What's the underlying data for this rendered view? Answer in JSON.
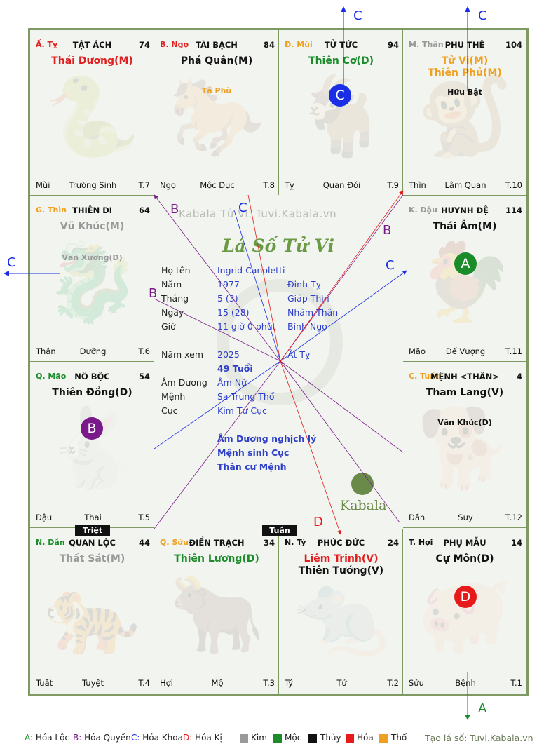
{
  "palaces": [
    {
      "corner": "Ấ. Tỵ",
      "corner_color": "#e02020",
      "name": "TẬT ÁCH",
      "num": "74",
      "main": [
        {
          "t": "Thái Dương(M)",
          "c": "#e02020"
        }
      ],
      "minor": [],
      "bottom": {
        "left": "Mùi",
        "mid": "Trường Sinh",
        "right": "T.7"
      },
      "animal": "🐍"
    },
    {
      "corner": "B. Ngọ",
      "corner_color": "#e02020",
      "name": "TÀI BẠCH",
      "num": "84",
      "main": [
        {
          "t": "Phá Quân(M)",
          "c": "#111111"
        }
      ],
      "minor": [
        {
          "t": "Tả Phù",
          "c": "#f0a020"
        }
      ],
      "bottom": {
        "left": "Ngọ",
        "mid": "Mộc Dục",
        "right": "T.8"
      },
      "animal": "🐎"
    },
    {
      "corner": "Đ. Mùi",
      "corner_color": "#f0a020",
      "name": "TỬ TỨC",
      "num": "94",
      "main": [
        {
          "t": "Thiên Cơ(D)",
          "c": "#1a8c2a"
        }
      ],
      "minor": [],
      "bottom": {
        "left": "Tỵ",
        "mid": "Quan Đới",
        "right": "T.9"
      },
      "animal": "🐐"
    },
    {
      "corner": "M. Thân",
      "corner_color": "#999999",
      "name": "PHU THÊ",
      "num": "104",
      "main": [
        {
          "t": "Tử Vi(M)",
          "c": "#f0a020"
        },
        {
          "t": "Thiên Phủ(M)",
          "c": "#f0a020"
        }
      ],
      "minor": [
        {
          "t": "Hữu Bật",
          "c": "#111111"
        }
      ],
      "bottom": {
        "left": "Thìn",
        "mid": "Lâm Quan",
        "right": "T.10"
      },
      "animal": "🐒"
    },
    {
      "corner": "G. Thìn",
      "corner_color": "#f0a020",
      "name": "THIÊN DI",
      "num": "64",
      "main": [
        {
          "t": "Vũ Khúc(M)",
          "c": "#999999"
        }
      ],
      "minor": [
        {
          "t": "Văn Xương(D)",
          "c": "#999999"
        }
      ],
      "bottom": {
        "left": "Thân",
        "mid": "Dưỡng",
        "right": "T.6"
      },
      "animal": "🐉"
    },
    {
      "corner": "K. Dậu",
      "corner_color": "#999999",
      "name": "HUYNH ĐỆ",
      "num": "114",
      "main": [
        {
          "t": "Thái Âm(M)",
          "c": "#111111"
        }
      ],
      "minor": [],
      "bottom": {
        "left": "Mão",
        "mid": "Đế Vượng",
        "right": "T.11"
      },
      "animal": "🐓"
    },
    {
      "corner": "Q. Mão",
      "corner_color": "#1a8c2a",
      "name": "NÔ BỘC",
      "num": "54",
      "main": [
        {
          "t": "Thiên Đồng(D)",
          "c": "#111111"
        }
      ],
      "minor": [],
      "bottom": {
        "left": "Dậu",
        "mid": "Thai",
        "right": "T.5"
      },
      "animal": "🐇"
    },
    {
      "corner": "C. Tuất",
      "corner_color": "#f0a020",
      "name": "MỆNH <THÂN>",
      "num": "4",
      "main": [
        {
          "t": "Tham Lang(V)",
          "c": "#111111"
        }
      ],
      "minor": [
        {
          "t": "Văn Khúc(D)",
          "c": "#111111"
        }
      ],
      "bottom": {
        "left": "Dần",
        "mid": "Suy",
        "right": "T.12"
      },
      "animal": "🐕"
    },
    {
      "corner": "N. Dần",
      "corner_color": "#1a8c2a",
      "name": "QUAN LỘC",
      "num": "44",
      "main": [
        {
          "t": "Thất Sát(M)",
          "c": "#999999"
        }
      ],
      "minor": [],
      "bottom": {
        "left": "Tuất",
        "mid": "Tuyệt",
        "right": "T.4"
      },
      "animal": "🐅"
    },
    {
      "corner": "Q. Sửu",
      "corner_color": "#f0a020",
      "name": "ĐIỀN TRẠCH",
      "num": "34",
      "main": [
        {
          "t": "Thiên Lương(D)",
          "c": "#1a8c2a"
        }
      ],
      "minor": [],
      "bottom": {
        "left": "Hợi",
        "mid": "Mộ",
        "right": "T.3"
      },
      "animal": "🐂"
    },
    {
      "corner": "N. Tý",
      "corner_color": "#111111",
      "name": "PHÚC ĐỨC",
      "num": "24",
      "main": [
        {
          "t": "Liêm Trinh(V)",
          "c": "#e02020"
        },
        {
          "t": "Thiên Tướng(V)",
          "c": "#111111"
        }
      ],
      "minor": [],
      "bottom": {
        "left": "Tý",
        "mid": "Tử",
        "right": "T.2"
      },
      "animal": "🐀"
    },
    {
      "corner": "T. Hợi",
      "corner_color": "#111111",
      "name": "PHỤ MẪU",
      "num": "14",
      "main": [
        {
          "t": "Cự Môn(D)",
          "c": "#111111"
        }
      ],
      "minor": [],
      "bottom": {
        "left": "Sửu",
        "mid": "Bệnh",
        "right": "T.1"
      },
      "animal": "🐖"
    }
  ],
  "circles": [
    {
      "label": "C",
      "color": "#1a2ee6"
    },
    {
      "label": "A",
      "color": "#1a8c2a"
    },
    {
      "label": "B",
      "color": "#7a1a8a"
    },
    {
      "label": "D",
      "color": "#e61a1a"
    }
  ],
  "center": {
    "watermark": "Kabala Tử Vi: Tuvi.Kabala.vn",
    "title": "Lá Số Tử Vi",
    "labels": [
      "Họ tên",
      "Năm",
      "Tháng",
      "Ngày",
      "Giờ",
      "Năm xem",
      "Âm Dương",
      "Mệnh",
      "Cục"
    ],
    "values": {
      "name": "Ingrid Canoletti",
      "year": "1977",
      "year_can": "Đinh Tỵ",
      "month": "5  (3)",
      "month_can": "Giáp Thìn",
      "day": "15  (28)",
      "day_can": "Nhâm Thân",
      "hour": "11 giờ 0 phút",
      "hour_can": "Bính Ngọ",
      "view_year": "2025",
      "view_can": "Ất Tỵ",
      "age": "49 Tuổi",
      "amduong": "Âm Nữ",
      "menh": "Sa Trung Thổ",
      "cuc": "Kim Tứ Cục"
    },
    "notes": [
      "Âm Dương nghịch lý",
      "Mệnh sinh Cục",
      "Thân cư Mệnh"
    ],
    "logo_text": "Kabala"
  },
  "tags": {
    "triet": "Triệt",
    "tuan": "Tuần"
  },
  "arrow_labels": {
    "c1": "C",
    "c2": "C",
    "c3": "C",
    "c4": "C",
    "c5": "C",
    "a1": "A",
    "b1": "B",
    "b2": "B",
    "b3": "B",
    "d1": "D"
  },
  "colors": {
    "hoa_loc": "#1a8c2a",
    "hoa_quyen": "#7a1a8a",
    "hoa_khoa": "#1a2ee6",
    "hoa_ki": "#e61a1a"
  },
  "legend": {
    "items": [
      {
        "key": "A:",
        "text": "Hóa Lộc",
        "kc": "#1a8c2a"
      },
      {
        "key": "B:",
        "text": "Hóa Quyền",
        "kc": "#7a1a8a"
      },
      {
        "key": "C:",
        "text": "Hóa Khoa",
        "kc": "#1a2ee6"
      },
      {
        "key": "D:",
        "text": "Hóa Kị",
        "kc": "#e61a1a"
      }
    ],
    "elements": [
      {
        "name": "Kim",
        "color": "#999999"
      },
      {
        "name": "Mộc",
        "color": "#1a8c2a"
      },
      {
        "name": "Thủy",
        "color": "#111111"
      },
      {
        "name": "Hỏa",
        "color": "#e61a1a"
      },
      {
        "name": "Thổ",
        "color": "#f0a020"
      }
    ],
    "credit": "Tạo lá số: Tuvi.Kabala.vn"
  }
}
